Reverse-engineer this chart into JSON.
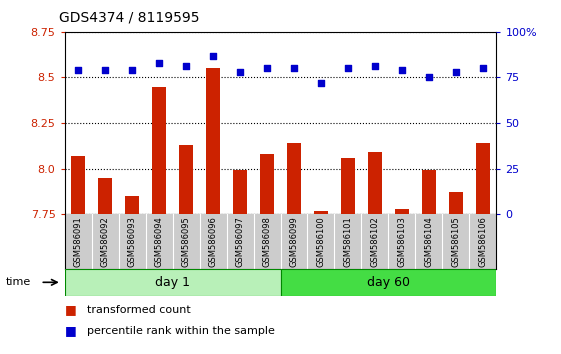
{
  "title": "GDS4374 / 8119595",
  "samples": [
    "GSM586091",
    "GSM586092",
    "GSM586093",
    "GSM586094",
    "GSM586095",
    "GSM586096",
    "GSM586097",
    "GSM586098",
    "GSM586099",
    "GSM586100",
    "GSM586101",
    "GSM586102",
    "GSM586103",
    "GSM586104",
    "GSM586105",
    "GSM586106"
  ],
  "bar_values": [
    8.07,
    7.95,
    7.85,
    8.45,
    8.13,
    8.55,
    7.99,
    8.08,
    8.14,
    7.77,
    8.06,
    8.09,
    7.78,
    7.99,
    7.87,
    8.14
  ],
  "dot_values": [
    79,
    79,
    79,
    83,
    81,
    87,
    78,
    80,
    80,
    72,
    80,
    81,
    79,
    75,
    78,
    80
  ],
  "ylim_left": [
    7.75,
    8.75
  ],
  "ylim_right": [
    0,
    100
  ],
  "yticks_left": [
    7.75,
    8.0,
    8.25,
    8.5,
    8.75
  ],
  "yticks_right": [
    0,
    25,
    50,
    75,
    100
  ],
  "bar_color": "#cc2200",
  "dot_color": "#0000cc",
  "day1_color": "#b8f0b8",
  "day60_color": "#44dd44",
  "day1_samples": 8,
  "day60_samples": 8,
  "label_bg_color": "#cccccc",
  "plot_bg": "#ffffff"
}
